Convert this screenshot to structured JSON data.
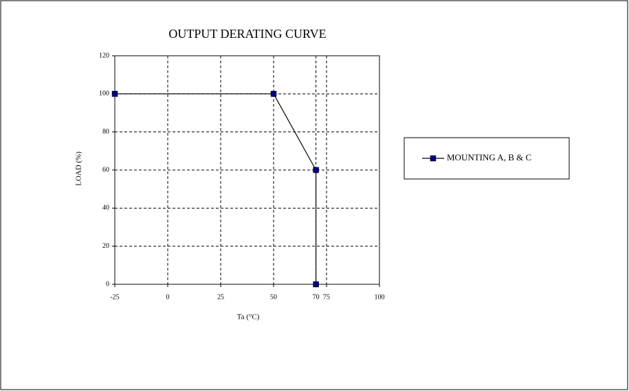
{
  "chart_data": {
    "type": "line",
    "title": "OUTPUT DERATING CURVE",
    "x_label": "Ta (°C)",
    "y_label": "LOAD (%)",
    "x": [
      -25,
      50,
      70,
      70
    ],
    "series": [
      {
        "name": "MOUNTING A, B & C",
        "color": "#000080",
        "values": [
          100,
          100,
          60,
          0
        ]
      }
    ],
    "xlim": [
      -25,
      100
    ],
    "xticks": [
      -25,
      0,
      25,
      50,
      70,
      75,
      100
    ],
    "ylim": [
      0,
      120
    ],
    "yticks": [
      0,
      20,
      40,
      60,
      80,
      100,
      120
    ],
    "grid": true,
    "legend": "right"
  }
}
